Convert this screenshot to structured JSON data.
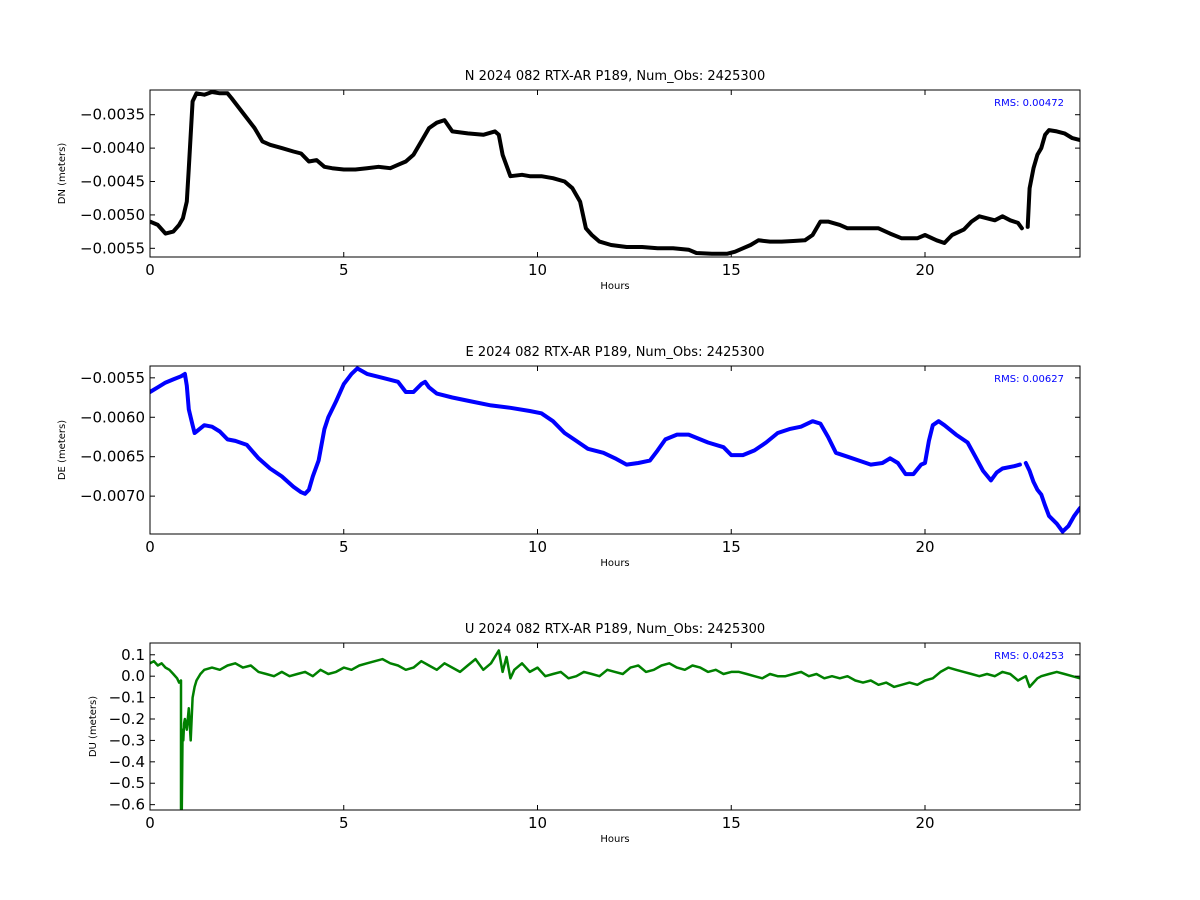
{
  "chart_data": [
    {
      "type": "line",
      "title": "N 2024 082 RTX-AR  P189, Num_Obs: 2425300",
      "xlabel": "Hours",
      "ylabel": "DN (meters)",
      "xlim": [
        0,
        24
      ],
      "ylim": [
        -0.00563,
        -0.00313
      ],
      "xticks": [
        0,
        5,
        10,
        15,
        20
      ],
      "yticks": [
        -0.0055,
        -0.005,
        -0.0045,
        -0.004,
        -0.0035
      ],
      "ytick_labels": [
        "−0.0055",
        "−0.0050",
        "−0.0045",
        "−0.0040",
        "−0.0035"
      ],
      "grid": false,
      "color": "#000000",
      "annotation": "RMS:  0.00472",
      "annotation_color": "#0000ff",
      "x": [
        0,
        0.2,
        0.4,
        0.6,
        0.75,
        0.85,
        0.95,
        1.0,
        1.05,
        1.1,
        1.2,
        1.4,
        1.6,
        1.8,
        2.0,
        2.1,
        2.3,
        2.5,
        2.7,
        2.9,
        3.1,
        3.4,
        3.7,
        3.9,
        4.1,
        4.3,
        4.5,
        4.7,
        5.0,
        5.3,
        5.6,
        5.9,
        6.2,
        6.4,
        6.6,
        6.8,
        7.0,
        7.2,
        7.4,
        7.6,
        7.8,
        8.2,
        8.6,
        8.9,
        9.0,
        9.1,
        9.3,
        9.6,
        9.8,
        10.1,
        10.4,
        10.7,
        10.9,
        11.1,
        11.25,
        11.4,
        11.6,
        11.9,
        12.3,
        12.7,
        13.1,
        13.5,
        13.9,
        14.1,
        14.5,
        14.9,
        15.1,
        15.3,
        15.5,
        15.7,
        16.0,
        16.3,
        16.6,
        16.9,
        17.1,
        17.3,
        17.5,
        17.8,
        18.0,
        18.3,
        18.5,
        18.8,
        19.1,
        19.4,
        19.6,
        19.8,
        20.0,
        20.3,
        20.5,
        20.7,
        21.0,
        21.2,
        21.4,
        21.6,
        21.8,
        22.0,
        22.2,
        22.4,
        22.5,
        null,
        22.65,
        22.7,
        22.8,
        22.9,
        23.0,
        23.1,
        23.2,
        23.4,
        23.6,
        23.8,
        24.0
      ],
      "y": [
        -0.0051,
        -0.00515,
        -0.00528,
        -0.00525,
        -0.00515,
        -0.00505,
        -0.0048,
        -0.0043,
        -0.0038,
        -0.0033,
        -0.00318,
        -0.0032,
        -0.00316,
        -0.00318,
        -0.00318,
        -0.00325,
        -0.0034,
        -0.00355,
        -0.0037,
        -0.0039,
        -0.00395,
        -0.004,
        -0.00405,
        -0.00408,
        -0.0042,
        -0.00418,
        -0.00428,
        -0.0043,
        -0.00432,
        -0.00432,
        -0.0043,
        -0.00428,
        -0.0043,
        -0.00425,
        -0.0042,
        -0.0041,
        -0.0039,
        -0.0037,
        -0.00362,
        -0.00358,
        -0.00375,
        -0.00378,
        -0.0038,
        -0.00375,
        -0.0038,
        -0.0041,
        -0.00442,
        -0.0044,
        -0.00442,
        -0.00442,
        -0.00445,
        -0.0045,
        -0.0046,
        -0.0048,
        -0.0052,
        -0.0053,
        -0.0054,
        -0.00545,
        -0.00548,
        -0.00548,
        -0.0055,
        -0.0055,
        -0.00552,
        -0.00557,
        -0.00558,
        -0.00558,
        -0.00555,
        -0.0055,
        -0.00545,
        -0.00538,
        -0.0054,
        -0.0054,
        -0.00539,
        -0.00538,
        -0.0053,
        -0.0051,
        -0.0051,
        -0.00515,
        -0.0052,
        -0.0052,
        -0.0052,
        -0.0052,
        -0.00528,
        -0.00535,
        -0.00535,
        -0.00535,
        -0.0053,
        -0.00538,
        -0.00542,
        -0.0053,
        -0.00522,
        -0.0051,
        -0.00502,
        -0.00505,
        -0.00508,
        -0.00502,
        -0.00508,
        -0.00512,
        -0.0052,
        null,
        -0.00518,
        -0.0046,
        -0.0043,
        -0.0041,
        -0.004,
        -0.0038,
        -0.00373,
        -0.00375,
        -0.00378,
        -0.00385,
        -0.00388
      ]
    },
    {
      "type": "line",
      "title": "E 2024 082 RTX-AR  P189, Num_Obs: 2425300",
      "xlabel": "Hours",
      "ylabel": "DE (meters)",
      "xlim": [
        0,
        24
      ],
      "ylim": [
        -0.00748,
        -0.00535
      ],
      "xticks": [
        0,
        5,
        10,
        15,
        20
      ],
      "yticks": [
        -0.007,
        -0.0065,
        -0.006,
        -0.0055
      ],
      "ytick_labels": [
        "−0.0070",
        "−0.0065",
        "−0.0060",
        "−0.0055"
      ],
      "grid": false,
      "color": "#0000ff",
      "annotation": "RMS:  0.00627",
      "annotation_color": "#0000ff",
      "x": [
        0,
        0.2,
        0.4,
        0.6,
        0.8,
        0.9,
        0.95,
        1.0,
        1.05,
        1.1,
        1.15,
        1.2,
        1.4,
        1.6,
        1.8,
        2.0,
        2.2,
        2.5,
        2.8,
        3.1,
        3.4,
        3.7,
        3.9,
        4.0,
        4.1,
        4.2,
        4.35,
        4.5,
        4.6,
        4.8,
        5.0,
        5.2,
        5.35,
        5.6,
        6.0,
        6.4,
        6.6,
        6.8,
        7.0,
        7.1,
        7.2,
        7.4,
        7.8,
        8.3,
        8.8,
        9.3,
        9.8,
        10.1,
        10.4,
        10.7,
        11.0,
        11.3,
        11.7,
        12.0,
        12.3,
        12.6,
        12.9,
        13.1,
        13.3,
        13.6,
        13.9,
        14.2,
        14.4,
        14.8,
        15.0,
        15.3,
        15.6,
        15.9,
        16.2,
        16.5,
        16.8,
        17.1,
        17.3,
        17.5,
        17.7,
        18.0,
        18.3,
        18.6,
        18.9,
        19.1,
        19.3,
        19.5,
        19.7,
        19.9,
        20.0,
        20.1,
        20.2,
        20.35,
        20.5,
        20.8,
        21.1,
        21.3,
        21.5,
        21.7,
        21.85,
        22.0,
        22.3,
        22.45,
        null,
        22.6,
        22.7,
        22.8,
        22.9,
        23.0,
        23.1,
        23.2,
        23.4,
        23.55,
        23.7,
        23.85,
        24.0
      ],
      "y": [
        -0.00568,
        -0.00562,
        -0.00556,
        -0.00552,
        -0.00548,
        -0.00545,
        -0.0056,
        -0.0059,
        -0.006,
        -0.0061,
        -0.0062,
        -0.00618,
        -0.0061,
        -0.00612,
        -0.00618,
        -0.00628,
        -0.0063,
        -0.00635,
        -0.00652,
        -0.00665,
        -0.00675,
        -0.00688,
        -0.00695,
        -0.00697,
        -0.00692,
        -0.00675,
        -0.00655,
        -0.00615,
        -0.006,
        -0.0058,
        -0.00558,
        -0.00545,
        -0.00538,
        -0.00545,
        -0.0055,
        -0.00555,
        -0.00568,
        -0.00568,
        -0.00558,
        -0.00555,
        -0.00562,
        -0.0057,
        -0.00575,
        -0.0058,
        -0.00585,
        -0.00588,
        -0.00592,
        -0.00595,
        -0.00605,
        -0.0062,
        -0.0063,
        -0.0064,
        -0.00645,
        -0.00652,
        -0.0066,
        -0.00658,
        -0.00655,
        -0.00642,
        -0.00628,
        -0.00622,
        -0.00622,
        -0.00628,
        -0.00632,
        -0.00638,
        -0.00648,
        -0.00648,
        -0.00642,
        -0.00632,
        -0.0062,
        -0.00615,
        -0.00612,
        -0.00605,
        -0.00608,
        -0.00625,
        -0.00645,
        -0.0065,
        -0.00655,
        -0.0066,
        -0.00658,
        -0.00652,
        -0.00658,
        -0.00672,
        -0.00672,
        -0.0066,
        -0.00658,
        -0.0063,
        -0.0061,
        -0.00605,
        -0.0061,
        -0.00622,
        -0.00632,
        -0.0065,
        -0.00668,
        -0.0068,
        -0.0067,
        -0.00665,
        -0.00662,
        -0.0066,
        null,
        -0.00658,
        -0.00668,
        -0.00682,
        -0.00692,
        -0.00698,
        -0.00712,
        -0.00725,
        -0.00735,
        -0.00745,
        -0.00738,
        -0.00725,
        -0.00715
      ]
    },
    {
      "type": "line",
      "title": "U 2024 082 RTX-AR  P189, Num_Obs: 2425300",
      "xlabel": "Hours",
      "ylabel": "DU (meters)",
      "xlim": [
        0,
        24
      ],
      "ylim": [
        -0.625,
        0.155
      ],
      "xticks": [
        0,
        5,
        10,
        15,
        20
      ],
      "yticks": [
        0.1,
        0.0,
        -0.1,
        -0.2,
        -0.3,
        -0.4,
        -0.5,
        -0.6
      ],
      "ytick_labels": [
        "0.1",
        "0.0",
        "−0.1",
        "−0.2",
        "−0.3",
        "−0.4",
        "−0.5",
        "−0.6"
      ],
      "grid": false,
      "color": "#008000",
      "annotation": "RMS:  0.04253",
      "annotation_color": "#0000ff",
      "x": [
        0,
        0.1,
        0.2,
        0.3,
        0.4,
        0.5,
        0.6,
        0.7,
        0.75,
        0.8,
        0.8,
        0.82,
        0.84,
        0.86,
        0.88,
        0.9,
        0.95,
        1.0,
        1.05,
        1.1,
        1.15,
        1.2,
        1.3,
        1.4,
        1.6,
        1.8,
        2.0,
        2.2,
        2.4,
        2.6,
        2.8,
        3.0,
        3.2,
        3.4,
        3.6,
        3.8,
        4.0,
        4.2,
        4.4,
        4.6,
        4.8,
        5.0,
        5.2,
        5.4,
        5.6,
        5.8,
        6.0,
        6.2,
        6.4,
        6.6,
        6.8,
        7.0,
        7.2,
        7.4,
        7.6,
        7.8,
        8.0,
        8.2,
        8.4,
        8.6,
        8.8,
        9.0,
        9.1,
        9.2,
        9.3,
        9.4,
        9.6,
        9.8,
        10.0,
        10.2,
        10.4,
        10.6,
        10.8,
        11.0,
        11.2,
        11.4,
        11.6,
        11.8,
        12.0,
        12.2,
        12.4,
        12.6,
        12.8,
        13.0,
        13.2,
        13.4,
        13.6,
        13.8,
        14.0,
        14.2,
        14.4,
        14.6,
        14.8,
        15.0,
        15.2,
        15.4,
        15.6,
        15.8,
        16.0,
        16.2,
        16.4,
        16.6,
        16.8,
        17.0,
        17.2,
        17.4,
        17.6,
        17.8,
        18.0,
        18.2,
        18.4,
        18.6,
        18.8,
        19.0,
        19.2,
        19.4,
        19.6,
        19.8,
        20.0,
        20.2,
        20.4,
        20.6,
        20.8,
        21.0,
        21.2,
        21.4,
        21.6,
        21.8,
        22.0,
        22.2,
        22.4,
        22.6,
        22.7,
        22.8,
        22.9,
        23.0,
        23.2,
        23.4,
        23.6,
        23.8,
        24.0
      ],
      "y": [
        0.06,
        0.07,
        0.05,
        0.06,
        0.04,
        0.03,
        0.01,
        -0.01,
        -0.03,
        -0.02,
        -0.62,
        -0.62,
        -0.25,
        -0.3,
        -0.22,
        -0.2,
        -0.25,
        -0.15,
        -0.3,
        -0.1,
        -0.05,
        -0.02,
        0.01,
        0.03,
        0.04,
        0.03,
        0.05,
        0.06,
        0.04,
        0.05,
        0.02,
        0.01,
        0.0,
        0.02,
        0.0,
        0.01,
        0.02,
        0.0,
        0.03,
        0.01,
        0.02,
        0.04,
        0.03,
        0.05,
        0.06,
        0.07,
        0.08,
        0.06,
        0.05,
        0.03,
        0.04,
        0.07,
        0.05,
        0.03,
        0.06,
        0.04,
        0.02,
        0.05,
        0.08,
        0.03,
        0.06,
        0.12,
        0.02,
        0.09,
        -0.01,
        0.03,
        0.06,
        0.02,
        0.04,
        0.0,
        0.01,
        0.02,
        -0.01,
        0.0,
        0.02,
        0.01,
        0.0,
        0.03,
        0.02,
        0.01,
        0.04,
        0.05,
        0.02,
        0.03,
        0.05,
        0.06,
        0.04,
        0.03,
        0.05,
        0.04,
        0.02,
        0.03,
        0.01,
        0.02,
        0.02,
        0.01,
        0.0,
        -0.01,
        0.01,
        0.0,
        0.0,
        0.01,
        0.02,
        0.0,
        0.01,
        -0.01,
        0.0,
        -0.01,
        0.0,
        -0.02,
        -0.03,
        -0.02,
        -0.04,
        -0.03,
        -0.05,
        -0.04,
        -0.03,
        -0.04,
        -0.02,
        -0.01,
        0.02,
        0.04,
        0.03,
        0.02,
        0.01,
        0.0,
        0.01,
        0.0,
        0.02,
        0.01,
        -0.02,
        0.0,
        -0.05,
        -0.03,
        -0.01,
        0.0,
        0.01,
        0.02,
        0.01,
        0.0,
        -0.01
      ]
    }
  ]
}
